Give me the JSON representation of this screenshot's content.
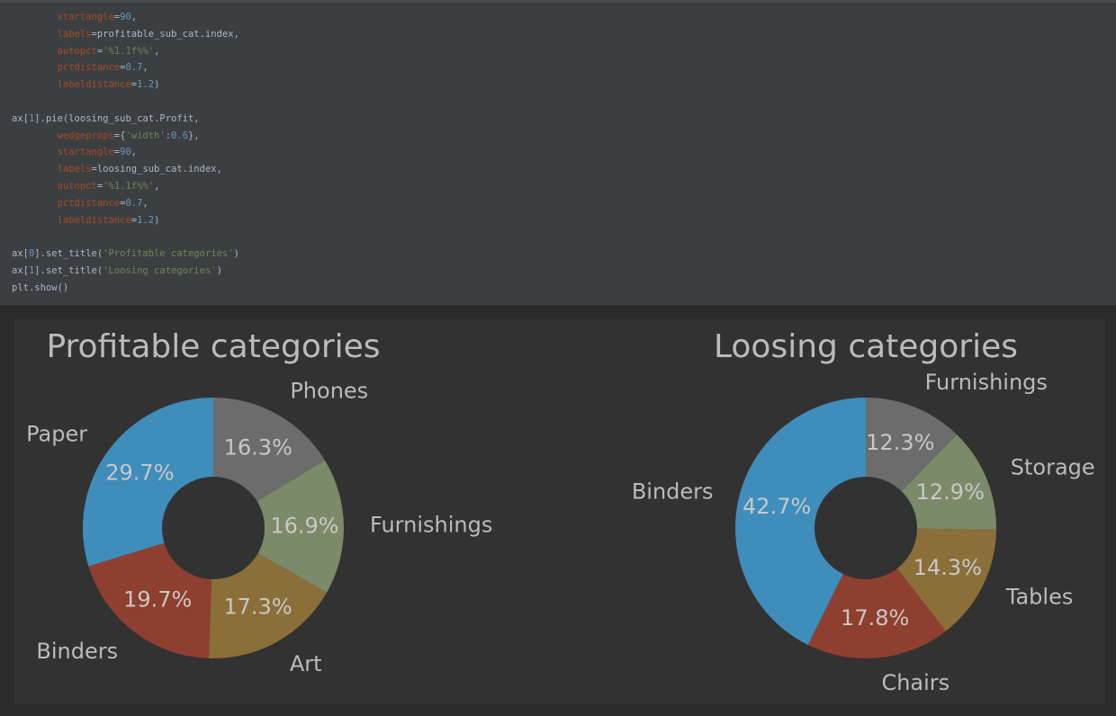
{
  "code": {
    "lines": [
      [
        {
          "t": "        "
        },
        {
          "t": "startangle",
          "c": "kw"
        },
        {
          "t": "="
        },
        {
          "t": "90",
          "c": "num"
        },
        {
          "t": ","
        }
      ],
      [
        {
          "t": "        "
        },
        {
          "t": "labels",
          "c": "kw"
        },
        {
          "t": "=profitable_sub_cat.index,"
        }
      ],
      [
        {
          "t": "        "
        },
        {
          "t": "autopct",
          "c": "kw"
        },
        {
          "t": "="
        },
        {
          "t": "'%1.1f%%'",
          "c": "str"
        },
        {
          "t": ","
        }
      ],
      [
        {
          "t": "        "
        },
        {
          "t": "pctdistance",
          "c": "kw"
        },
        {
          "t": "="
        },
        {
          "t": "0.7",
          "c": "num"
        },
        {
          "t": ","
        }
      ],
      [
        {
          "t": "        "
        },
        {
          "t": "labeldistance",
          "c": "kw"
        },
        {
          "t": "="
        },
        {
          "t": "1.2",
          "c": "num"
        },
        {
          "t": ")"
        }
      ],
      [],
      [
        {
          "t": "ax["
        },
        {
          "t": "1",
          "c": "num"
        },
        {
          "t": "].pie(loosing_sub_cat.Profit,"
        }
      ],
      [
        {
          "t": "        "
        },
        {
          "t": "wedgeprops",
          "c": "kw"
        },
        {
          "t": "={"
        },
        {
          "t": "'width'",
          "c": "str"
        },
        {
          "t": ":"
        },
        {
          "t": "0.6",
          "c": "num"
        },
        {
          "t": "},"
        }
      ],
      [
        {
          "t": "        "
        },
        {
          "t": "startangle",
          "c": "kw"
        },
        {
          "t": "="
        },
        {
          "t": "90",
          "c": "num"
        },
        {
          "t": ","
        }
      ],
      [
        {
          "t": "        "
        },
        {
          "t": "labels",
          "c": "kw"
        },
        {
          "t": "=loosing_sub_cat.index,"
        }
      ],
      [
        {
          "t": "        "
        },
        {
          "t": "autopct",
          "c": "kw"
        },
        {
          "t": "="
        },
        {
          "t": "'%1.1f%%'",
          "c": "str"
        },
        {
          "t": ","
        }
      ],
      [
        {
          "t": "        "
        },
        {
          "t": "pctdistance",
          "c": "kw"
        },
        {
          "t": "="
        },
        {
          "t": "0.7",
          "c": "num"
        },
        {
          "t": ","
        }
      ],
      [
        {
          "t": "        "
        },
        {
          "t": "labeldistance",
          "c": "kw"
        },
        {
          "t": "="
        },
        {
          "t": "1.2",
          "c": "num"
        },
        {
          "t": ")"
        }
      ],
      [],
      [
        {
          "t": "ax["
        },
        {
          "t": "0",
          "c": "num"
        },
        {
          "t": "].set_title("
        },
        {
          "t": "'Profitable categories'",
          "c": "str"
        },
        {
          "t": ")"
        }
      ],
      [
        {
          "t": "ax["
        },
        {
          "t": "1",
          "c": "num"
        },
        {
          "t": "].set_title("
        },
        {
          "t": "'Loosing categories'",
          "c": "str"
        },
        {
          "t": ")"
        }
      ],
      [
        {
          "t": "plt.show()"
        }
      ]
    ]
  },
  "chart_data": [
    {
      "type": "pie",
      "donut": true,
      "title": "Profitable categories",
      "labels": [
        "Phones",
        "Furnishings",
        "Art",
        "Binders",
        "Paper"
      ],
      "values": [
        16.3,
        16.9,
        17.3,
        19.7,
        29.7
      ],
      "pct_labels": [
        "16.3%",
        "16.9%",
        "17.3%",
        "19.7%",
        "29.7%"
      ],
      "colors": [
        "#6c6c6c",
        "#7b8a68",
        "#8a6f38",
        "#8f3f2f",
        "#3f8dbb"
      ],
      "start_angle": 90,
      "direction": "clockwise"
    },
    {
      "type": "pie",
      "donut": true,
      "title": "Loosing categories",
      "labels": [
        "Furnishings",
        "Storage",
        "Tables",
        "Chairs",
        "Binders"
      ],
      "values": [
        12.3,
        12.9,
        14.3,
        17.8,
        42.7
      ],
      "pct_labels": [
        "12.3%",
        "12.9%",
        "14.3%",
        "17.8%",
        "42.7%"
      ],
      "colors": [
        "#6c6c6c",
        "#7b8a68",
        "#8a6f38",
        "#8f3f2f",
        "#3f8dbb"
      ],
      "start_angle": 90,
      "direction": "clockwise"
    }
  ]
}
